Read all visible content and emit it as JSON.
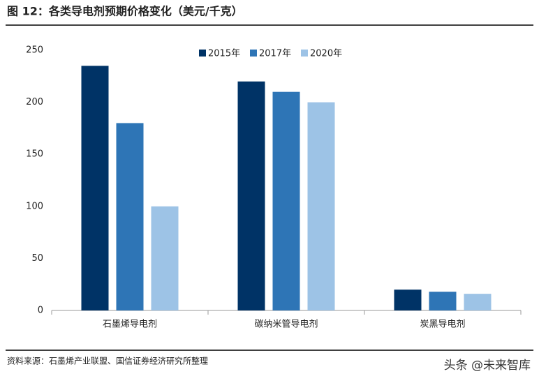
{
  "chart_data": {
    "type": "bar",
    "title": "图 12：各类导电剂预期价格变化（美元/千克）",
    "categories": [
      "石墨烯导电剂",
      "碳纳米管导电剂",
      "炭黑导电剂"
    ],
    "series": [
      {
        "name": "2015年",
        "color": "#003366",
        "values": [
          235,
          220,
          20
        ]
      },
      {
        "name": "2017年",
        "color": "#2e75b6",
        "values": [
          180,
          210,
          18
        ]
      },
      {
        "name": "2020年",
        "color": "#9dc3e6",
        "values": [
          100,
          200,
          16
        ]
      }
    ],
    "ylim": [
      0,
      250
    ],
    "yticks": [
      0,
      50,
      100,
      150,
      200,
      250
    ],
    "grid": false,
    "legend": "top",
    "source": "资料来源：石墨烯产业联盟、国信证券经济研究所整理",
    "watermark": "头条 @未来智库"
  }
}
